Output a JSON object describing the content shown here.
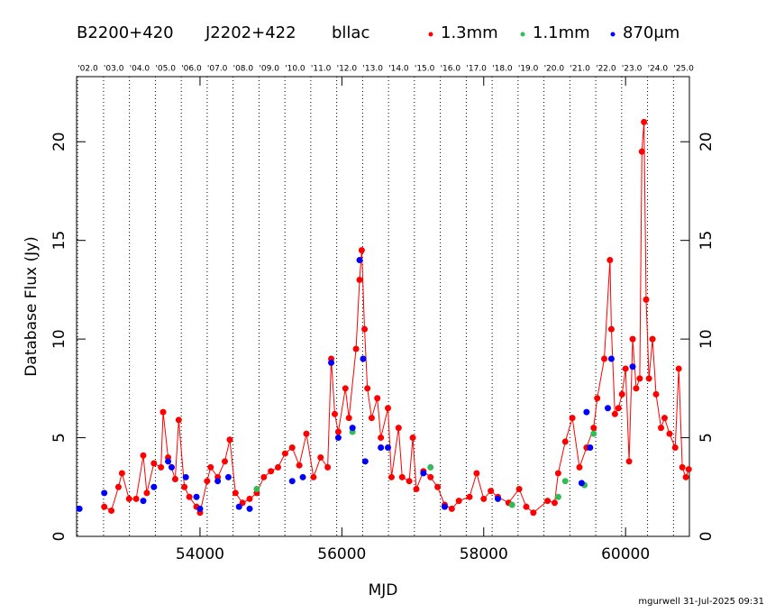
{
  "chart_data": {
    "type": "scatter",
    "title_parts": [
      "B2200+420",
      "J2202+422",
      "bllac"
    ],
    "x_label": "MJD",
    "y_label": "Database Flux (Jy)",
    "footer": "mgurwell 31-Jul-2025 09:31",
    "xlim": [
      52260,
      60900
    ],
    "ylim": [
      0,
      23.3
    ],
    "xticks": [
      54000,
      56000,
      58000,
      60000
    ],
    "yticks": [
      0,
      5,
      10,
      15,
      20
    ],
    "year_lines": [
      {
        "value": 52275,
        "label": "'02.0"
      },
      {
        "value": 52640,
        "label": "'03.0"
      },
      {
        "value": 53005,
        "label": "'04.0"
      },
      {
        "value": 53371,
        "label": "'05.0"
      },
      {
        "value": 53736,
        "label": "'06.0"
      },
      {
        "value": 54101,
        "label": "'07.0"
      },
      {
        "value": 54466,
        "label": "'08.0"
      },
      {
        "value": 54832,
        "label": "'09.0"
      },
      {
        "value": 55197,
        "label": "'10.0"
      },
      {
        "value": 55562,
        "label": "'11.0"
      },
      {
        "value": 55927,
        "label": "'12.0"
      },
      {
        "value": 56293,
        "label": "'13.0"
      },
      {
        "value": 56658,
        "label": "'14.0"
      },
      {
        "value": 57023,
        "label": "'15.0"
      },
      {
        "value": 57388,
        "label": "'16.0"
      },
      {
        "value": 57754,
        "label": "'17.0"
      },
      {
        "value": 58119,
        "label": "'18.0"
      },
      {
        "value": 58484,
        "label": "'19.0"
      },
      {
        "value": 58849,
        "label": "'20.0"
      },
      {
        "value": 59215,
        "label": "'21.0"
      },
      {
        "value": 59580,
        "label": "'22.0"
      },
      {
        "value": 59945,
        "label": "'23.0"
      },
      {
        "value": 60310,
        "label": "'24.0"
      },
      {
        "value": 60676,
        "label": "'25.0"
      }
    ],
    "series": [
      {
        "name": "1.3mm",
        "color": "#ff0000",
        "connected": true,
        "x": [
          52650,
          52750,
          52850,
          52900,
          53000,
          53100,
          53200,
          53250,
          53350,
          53450,
          53480,
          53550,
          53650,
          53700,
          53780,
          53850,
          53950,
          54000,
          54100,
          54150,
          54250,
          54350,
          54420,
          54500,
          54600,
          54700,
          54800,
          54900,
          55000,
          55100,
          55200,
          55300,
          55400,
          55500,
          55600,
          55700,
          55800,
          55850,
          55900,
          55950,
          56050,
          56100,
          56200,
          56250,
          56280,
          56320,
          56360,
          56420,
          56500,
          56550,
          56650,
          56700,
          56800,
          56850,
          56950,
          57000,
          57050,
          57150,
          57250,
          57350,
          57450,
          57550,
          57650,
          57800,
          57900,
          58000,
          58100,
          58200,
          58350,
          58500,
          58600,
          58700,
          58900,
          59000,
          59050,
          59150,
          59250,
          59350,
          59450,
          59550,
          59600,
          59700,
          59780,
          59800,
          59850,
          59900,
          59950,
          60000,
          60050,
          60100,
          60150,
          60200,
          60230,
          60260,
          60290,
          60330,
          60380,
          60430,
          60500,
          60550,
          60620,
          60700,
          60750,
          60800,
          60850,
          60890
        ],
        "values": [
          1.5,
          1.3,
          2.5,
          3.2,
          1.9,
          1.9,
          4.1,
          2.2,
          3.7,
          3.5,
          6.3,
          4.0,
          2.9,
          5.9,
          2.5,
          2.0,
          1.5,
          1.2,
          2.8,
          3.5,
          3.0,
          3.8,
          4.9,
          2.2,
          1.7,
          1.9,
          2.2,
          3.0,
          3.3,
          3.5,
          4.2,
          4.5,
          3.6,
          5.2,
          3.0,
          4.0,
          3.5,
          9.0,
          6.2,
          5.3,
          7.5,
          6.0,
          9.5,
          13.0,
          14.5,
          10.5,
          7.5,
          6.0,
          7.0,
          5.0,
          6.5,
          3.0,
          5.5,
          3.0,
          2.8,
          5.0,
          2.4,
          3.3,
          3.0,
          2.5,
          1.6,
          1.4,
          1.8,
          2.0,
          3.2,
          1.9,
          2.3,
          2.0,
          1.7,
          2.4,
          1.5,
          1.2,
          1.8,
          1.7,
          3.2,
          4.8,
          6.0,
          3.5,
          4.5,
          5.5,
          7.0,
          9.0,
          14.0,
          10.5,
          6.2,
          6.5,
          7.2,
          8.5,
          3.8,
          10.0,
          7.5,
          8.0,
          19.5,
          21.0,
          12.0,
          8.0,
          10.0,
          7.2,
          5.5,
          6.0,
          5.2,
          4.5,
          8.5,
          3.5,
          3.0,
          3.4
        ]
      },
      {
        "name": "1.1mm",
        "color": "#33bb55",
        "connected": false,
        "x": [
          54800,
          56150,
          57250,
          58400,
          59050,
          59150,
          59420,
          59550
        ],
        "values": [
          2.4,
          5.3,
          3.5,
          1.6,
          2.0,
          2.8,
          2.6,
          5.2
        ]
      },
      {
        "name": "870μm",
        "color": "#0000ff",
        "connected": false,
        "x": [
          52300,
          52650,
          53200,
          53350,
          53550,
          53600,
          53800,
          53950,
          54000,
          54250,
          54400,
          54550,
          54700,
          55300,
          55450,
          55850,
          55950,
          56150,
          56250,
          56300,
          56330,
          56550,
          56650,
          57150,
          57450,
          58200,
          59380,
          59450,
          59500,
          59750,
          59800,
          60100
        ],
        "values": [
          1.4,
          2.2,
          1.8,
          2.5,
          3.8,
          3.5,
          3.0,
          2.0,
          1.4,
          2.8,
          3.0,
          1.5,
          1.4,
          2.8,
          3.0,
          8.8,
          5.0,
          5.5,
          14.0,
          9.0,
          3.8,
          4.5,
          4.5,
          3.2,
          1.5,
          1.9,
          2.7,
          6.3,
          4.5,
          6.5,
          9.0,
          8.6
        ]
      }
    ]
  }
}
